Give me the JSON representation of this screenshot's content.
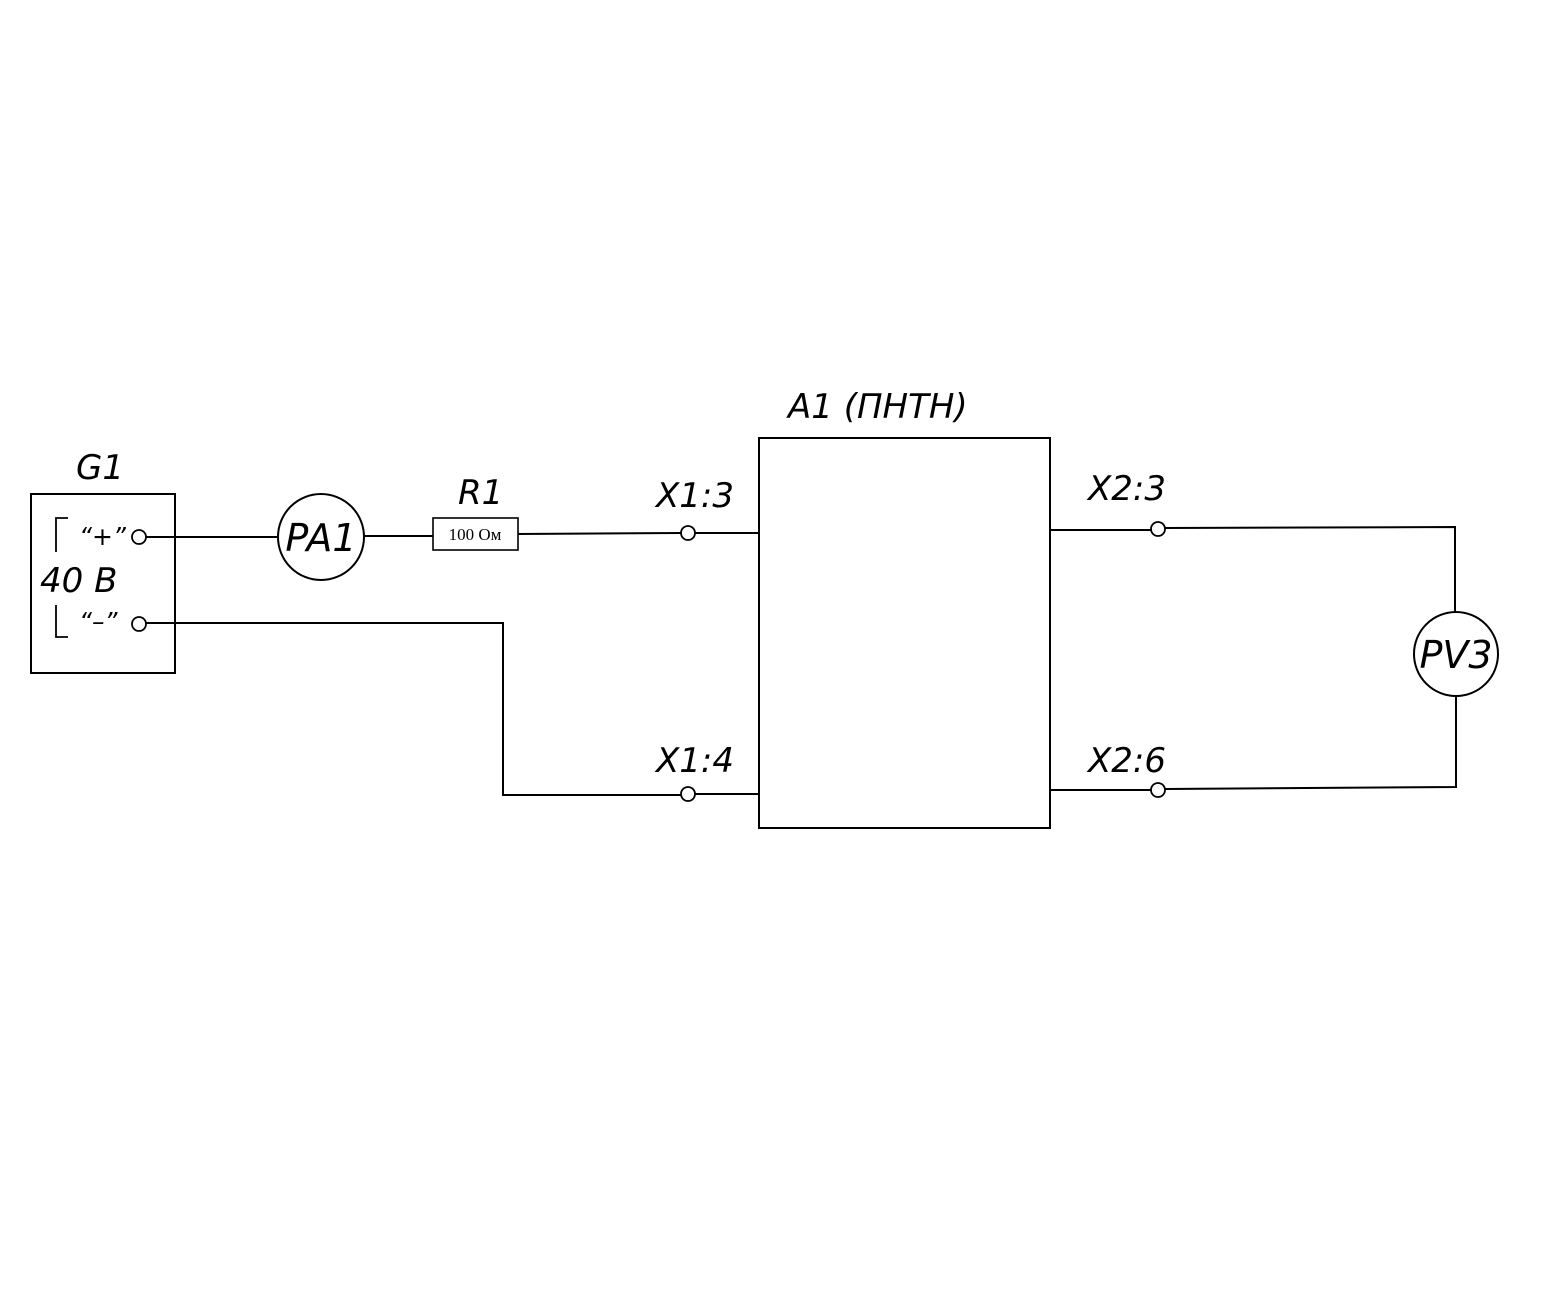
{
  "source": {
    "label": "G1",
    "voltage": "40 В",
    "plus": "“+”",
    "minus": "“–”"
  },
  "ammeter": {
    "label": "PA1"
  },
  "resistor": {
    "label": "R1",
    "value": "100 Ом"
  },
  "converter": {
    "label": "A1 (ПНТН)"
  },
  "terminals": {
    "x1_3": "X1:3",
    "x1_4": "X1:4",
    "x2_3": "X2:3",
    "x2_6": "X2:6"
  },
  "voltmeter": {
    "label": "PV3"
  }
}
